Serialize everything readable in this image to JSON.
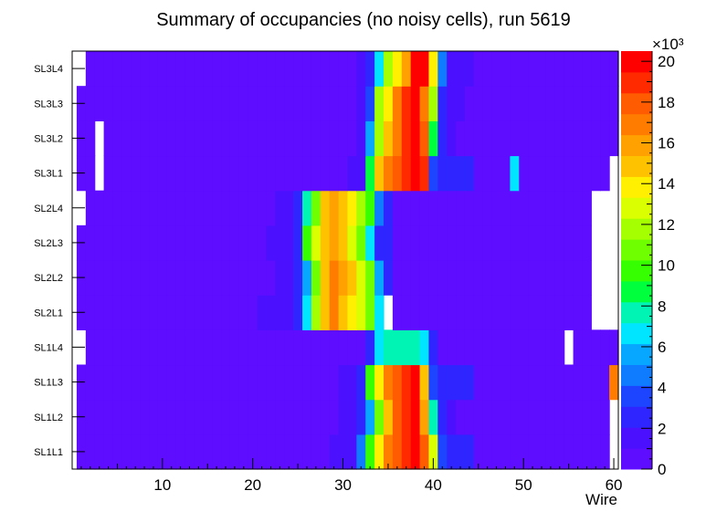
{
  "chart_data": {
    "type": "heatmap",
    "title": "Summary of occupancies (no noisy cells), run 5619",
    "xlabel": "Wire",
    "ylabel": "",
    "xlim": [
      0,
      60.5
    ],
    "x_ticks": [
      "10",
      "20",
      "30",
      "40",
      "50",
      "60"
    ],
    "x_tick_values": [
      10,
      20,
      30,
      40,
      50,
      60
    ],
    "z_exponent_label": "×10³",
    "z_ticks": [
      "0",
      "2",
      "4",
      "6",
      "8",
      "10",
      "12",
      "14",
      "16",
      "18",
      "20"
    ],
    "z_tick_values": [
      0,
      2,
      4,
      6,
      8,
      10,
      12,
      14,
      16,
      18,
      20
    ],
    "zlim": [
      0,
      20.5
    ],
    "z_units": "thousands",
    "rows": [
      "SL1L1",
      "SL1L2",
      "SL1L3",
      "SL1L4",
      "SL2L1",
      "SL2L2",
      "SL2L3",
      "SL2L4",
      "SL3L1",
      "SL3L2",
      "SL3L3",
      "SL3L4"
    ],
    "colors": [
      "#5e0dff",
      "#4b11ff",
      "#2f26ff",
      "#1d44ff",
      "#0f7bff",
      "#07a6ff",
      "#00e5ff",
      "#00f5b4",
      "#00ff3c",
      "#35ff00",
      "#70ff00",
      "#a5ff00",
      "#d9ff00",
      "#ffef00",
      "#ffc200",
      "#ffa100",
      "#ff7c00",
      "#ff5b00",
      "#ff2a00",
      "#ff0000"
    ],
    "row_profiles": [
      {
        "start": 1,
        "end": 60,
        "blanks": [
          60
        ],
        "overrides": [
          [
            29,
            1
          ],
          [
            30,
            1
          ],
          [
            31,
            1
          ],
          [
            32,
            4
          ],
          [
            33,
            9
          ],
          [
            34,
            13
          ],
          [
            35,
            16
          ],
          [
            36,
            17
          ],
          [
            37,
            18
          ],
          [
            38,
            19
          ],
          [
            39,
            17
          ],
          [
            40,
            12
          ],
          [
            41,
            3
          ],
          [
            42,
            2
          ],
          [
            43,
            2
          ],
          [
            44,
            2
          ]
        ]
      },
      {
        "start": 1,
        "end": 60,
        "blanks": [
          60
        ],
        "overrides": [
          [
            30,
            1
          ],
          [
            31,
            1
          ],
          [
            32,
            2
          ],
          [
            33,
            5
          ],
          [
            34,
            10
          ],
          [
            35,
            14
          ],
          [
            36,
            17
          ],
          [
            37,
            18
          ],
          [
            38,
            19
          ],
          [
            39,
            15
          ],
          [
            40,
            7
          ],
          [
            41,
            2
          ],
          [
            42,
            1
          ]
        ]
      },
      {
        "start": 1,
        "end": 60,
        "blanks": [],
        "overrides": [
          [
            30,
            1
          ],
          [
            31,
            1
          ],
          [
            32,
            2
          ],
          [
            33,
            9
          ],
          [
            34,
            13
          ],
          [
            35,
            16
          ],
          [
            36,
            17
          ],
          [
            37,
            18
          ],
          [
            38,
            19
          ],
          [
            39,
            14
          ],
          [
            40,
            3
          ],
          [
            41,
            2
          ],
          [
            42,
            2
          ],
          [
            43,
            2
          ],
          [
            44,
            2
          ],
          [
            60,
            16
          ]
        ]
      },
      {
        "start": 1,
        "end": 60,
        "blanks": [
          1,
          55
        ],
        "overrides": [
          [
            33,
            2
          ],
          [
            34,
            6
          ],
          [
            35,
            7
          ],
          [
            36,
            7
          ],
          [
            37,
            7
          ],
          [
            38,
            7
          ],
          [
            39,
            6
          ],
          [
            40,
            2
          ]
        ]
      },
      {
        "start": 1,
        "end": 57,
        "blanks": [
          35
        ],
        "overrides": [
          [
            21,
            1
          ],
          [
            22,
            1
          ],
          [
            23,
            1
          ],
          [
            24,
            1
          ],
          [
            25,
            2
          ],
          [
            26,
            6
          ],
          [
            27,
            11
          ],
          [
            28,
            14
          ],
          [
            29,
            16
          ],
          [
            30,
            14
          ],
          [
            31,
            13
          ],
          [
            32,
            12
          ],
          [
            33,
            10
          ],
          [
            34,
            6
          ]
        ]
      },
      {
        "start": 1,
        "end": 57,
        "blanks": [],
        "overrides": [
          [
            23,
            1
          ],
          [
            24,
            1
          ],
          [
            25,
            2
          ],
          [
            26,
            5
          ],
          [
            27,
            10
          ],
          [
            28,
            14
          ],
          [
            29,
            16
          ],
          [
            30,
            15
          ],
          [
            31,
            14
          ],
          [
            32,
            12
          ],
          [
            33,
            10
          ],
          [
            34,
            5
          ],
          [
            35,
            2
          ]
        ]
      },
      {
        "start": 1,
        "end": 57,
        "blanks": [],
        "overrides": [
          [
            22,
            1
          ],
          [
            23,
            1
          ],
          [
            24,
            1
          ],
          [
            25,
            2
          ],
          [
            26,
            9
          ],
          [
            27,
            12
          ],
          [
            28,
            14
          ],
          [
            29,
            15
          ],
          [
            30,
            14
          ],
          [
            31,
            12
          ],
          [
            32,
            10
          ],
          [
            33,
            6
          ],
          [
            34,
            2
          ],
          [
            35,
            2
          ]
        ]
      },
      {
        "start": 1,
        "end": 57,
        "blanks": [
          1
        ],
        "overrides": [
          [
            23,
            1
          ],
          [
            24,
            1
          ],
          [
            25,
            2
          ],
          [
            26,
            7
          ],
          [
            27,
            10
          ],
          [
            28,
            14
          ],
          [
            29,
            15
          ],
          [
            30,
            14
          ],
          [
            31,
            13
          ],
          [
            32,
            11
          ],
          [
            33,
            9
          ],
          [
            34,
            4
          ],
          [
            35,
            2
          ]
        ]
      },
      {
        "start": 1,
        "end": 59,
        "blanks": [
          3
        ],
        "overrides": [
          [
            31,
            1
          ],
          [
            32,
            1
          ],
          [
            33,
            8
          ],
          [
            34,
            14
          ],
          [
            35,
            16
          ],
          [
            36,
            17
          ],
          [
            37,
            18
          ],
          [
            38,
            19
          ],
          [
            39,
            18
          ],
          [
            40,
            3
          ],
          [
            41,
            2
          ],
          [
            42,
            2
          ],
          [
            43,
            2
          ],
          [
            44,
            2
          ],
          [
            49,
            6
          ]
        ]
      },
      {
        "start": 1,
        "end": 60,
        "blanks": [
          3
        ],
        "overrides": [
          [
            32,
            1
          ],
          [
            33,
            5
          ],
          [
            34,
            11
          ],
          [
            35,
            14
          ],
          [
            36,
            16
          ],
          [
            37,
            18
          ],
          [
            38,
            19
          ],
          [
            39,
            17
          ],
          [
            40,
            8
          ],
          [
            41,
            2
          ],
          [
            42,
            1
          ]
        ]
      },
      {
        "start": 1,
        "end": 60,
        "blanks": [],
        "overrides": [
          [
            32,
            1
          ],
          [
            33,
            3
          ],
          [
            34,
            11
          ],
          [
            35,
            13
          ],
          [
            36,
            16
          ],
          [
            37,
            18
          ],
          [
            38,
            19
          ],
          [
            39,
            16
          ],
          [
            40,
            11
          ],
          [
            41,
            2
          ],
          [
            42,
            1
          ],
          [
            43,
            1
          ]
        ]
      },
      {
        "start": 1,
        "end": 60,
        "blanks": [
          1
        ],
        "overrides": [
          [
            32,
            1
          ],
          [
            33,
            2
          ],
          [
            34,
            6
          ],
          [
            35,
            11
          ],
          [
            36,
            13
          ],
          [
            37,
            15
          ],
          [
            38,
            19
          ],
          [
            39,
            19
          ],
          [
            40,
            13
          ],
          [
            41,
            4
          ],
          [
            42,
            1
          ],
          [
            43,
            1
          ],
          [
            44,
            1
          ]
        ]
      }
    ]
  }
}
